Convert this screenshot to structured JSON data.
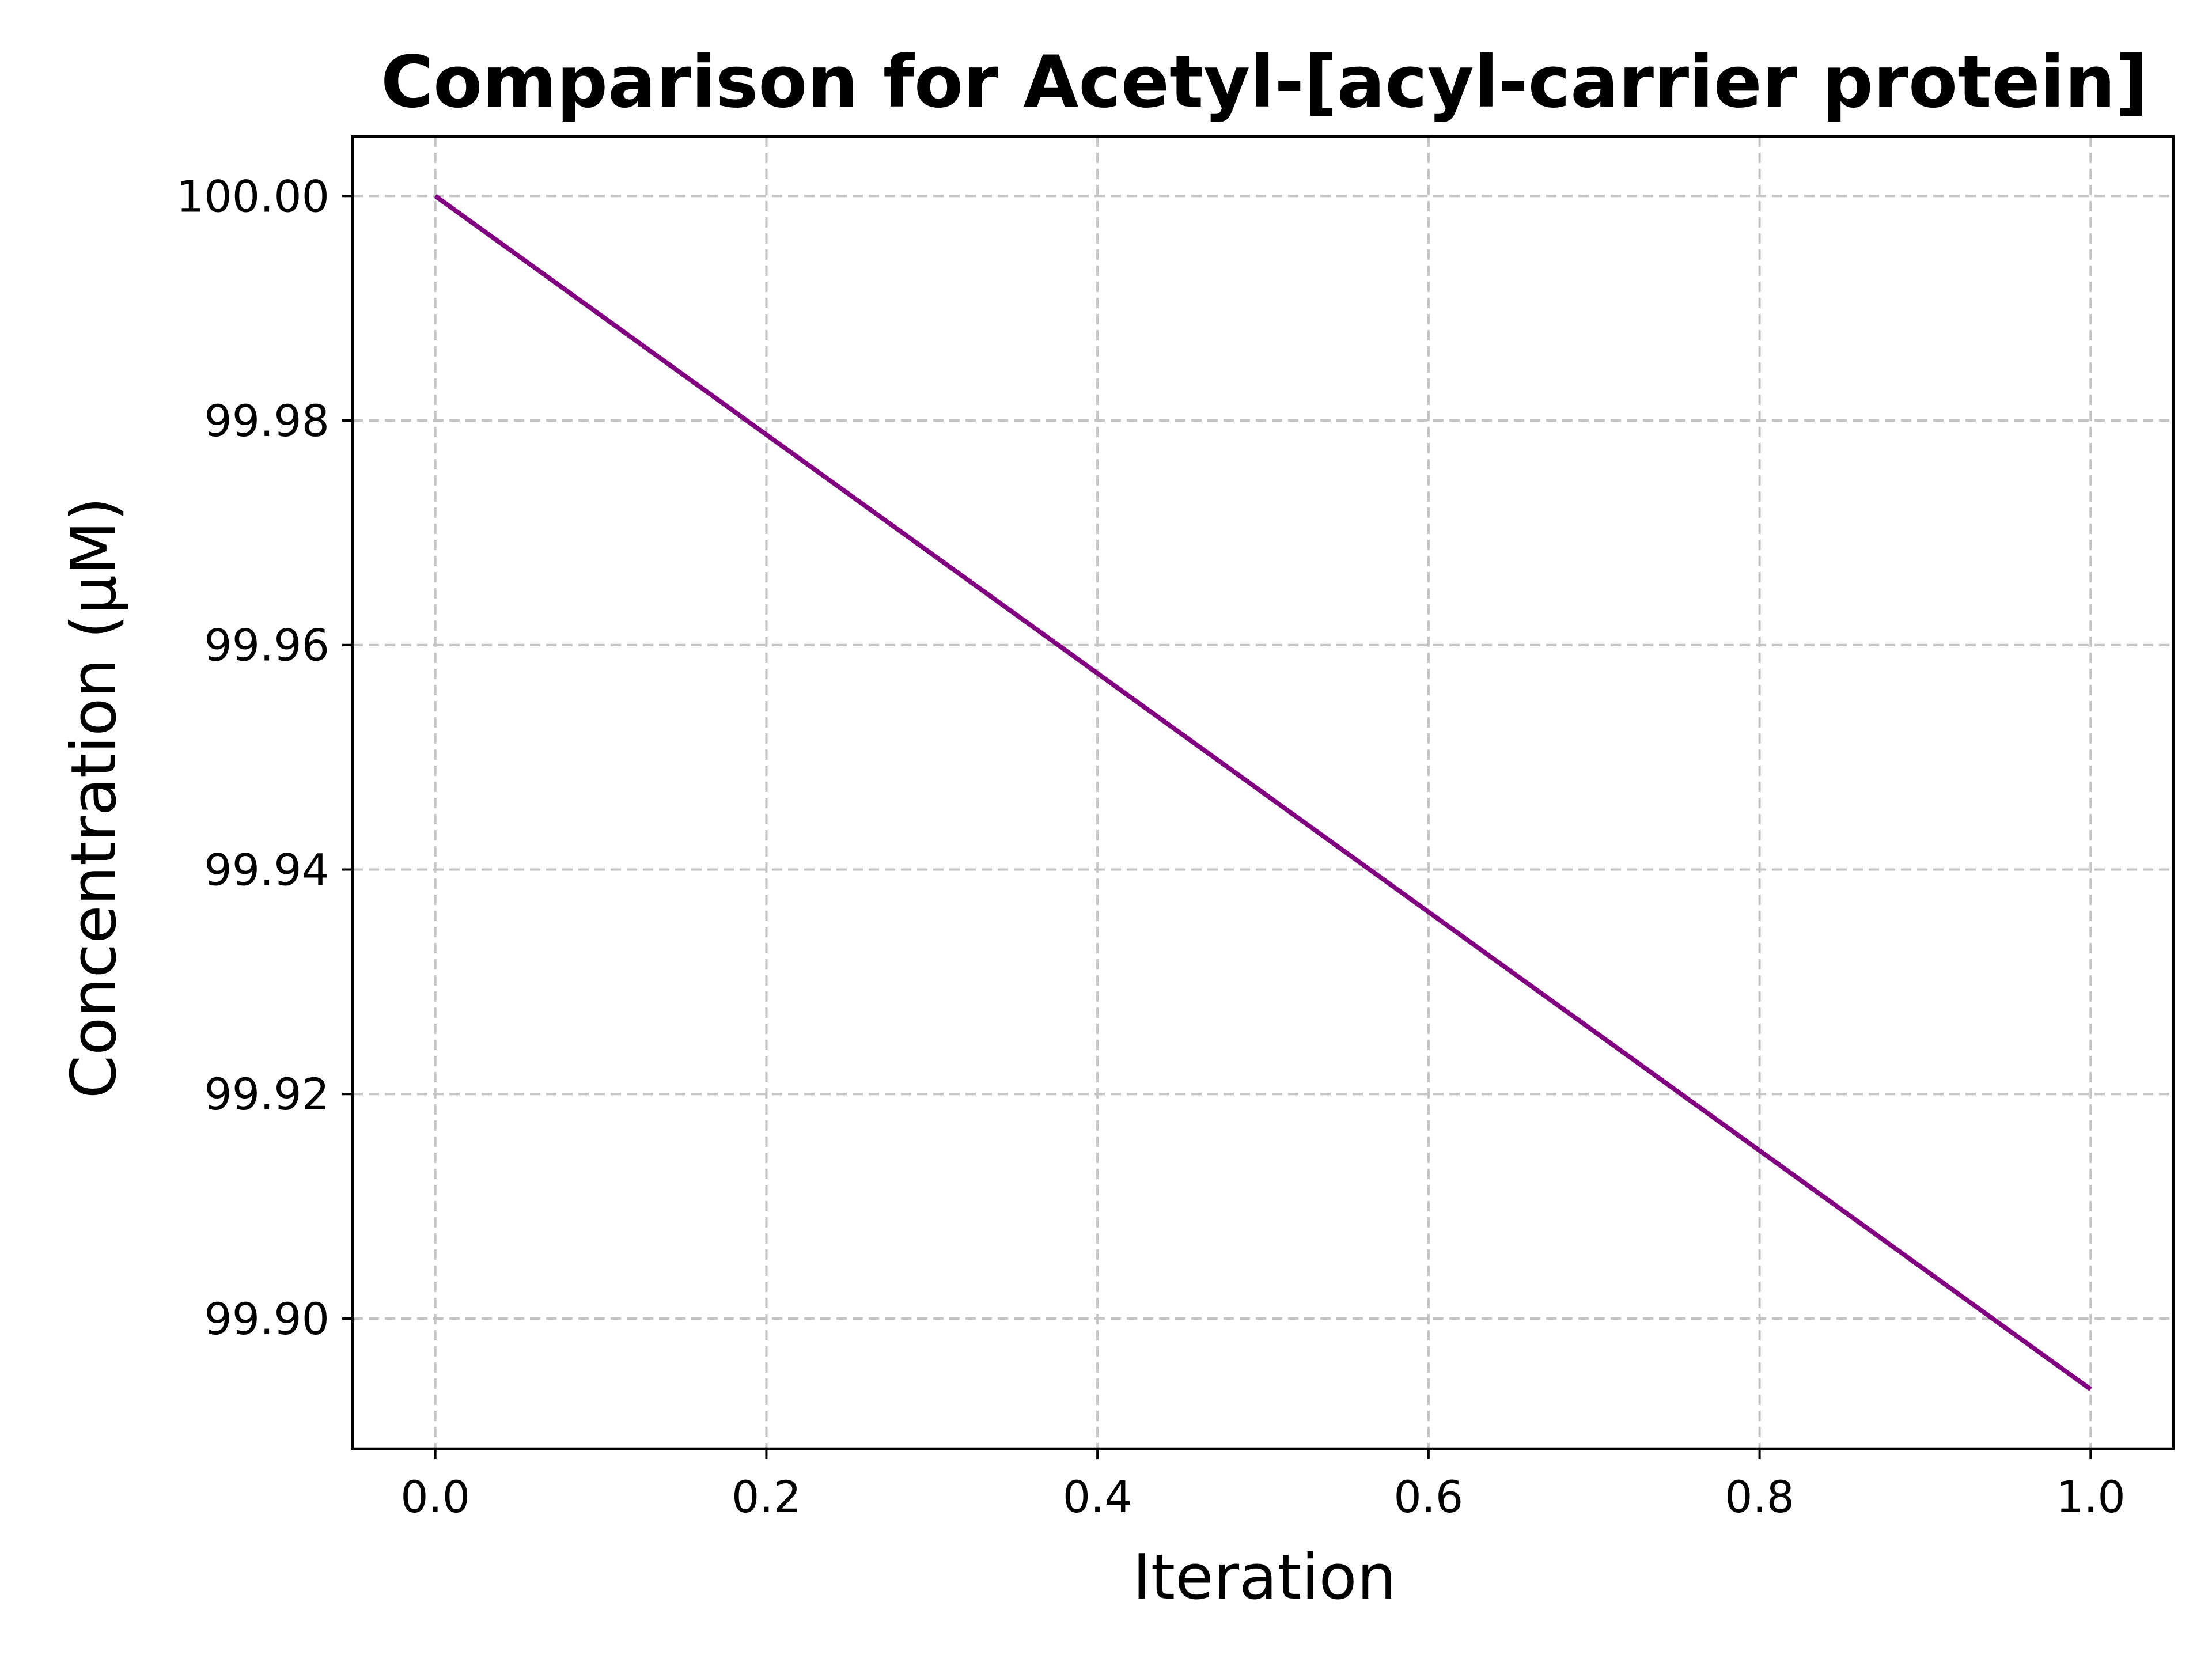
{
  "chart_data": {
    "type": "line",
    "title": "Comparison for Acetyl-[acyl-carrier protein]",
    "xlabel": "Iteration",
    "ylabel": "Concentration (μM)",
    "xlim": [
      -0.05,
      1.05
    ],
    "ylim": [
      99.8884,
      100.0053
    ],
    "grid": true,
    "x_ticks": [
      0.0,
      0.2,
      0.4,
      0.6,
      0.8,
      1.0
    ],
    "x_tick_labels": [
      "0.0",
      "0.2",
      "0.4",
      "0.6",
      "0.8",
      "1.0"
    ],
    "y_ticks": [
      99.9,
      99.92,
      99.94,
      99.96,
      99.98,
      100.0
    ],
    "y_tick_labels": [
      "99.90",
      "99.92",
      "99.94",
      "99.96",
      "99.98",
      "100.00"
    ],
    "series": [
      {
        "color": "#800080",
        "x": [
          0.0,
          1.0
        ],
        "y": [
          100.0,
          99.8937
        ]
      }
    ]
  }
}
